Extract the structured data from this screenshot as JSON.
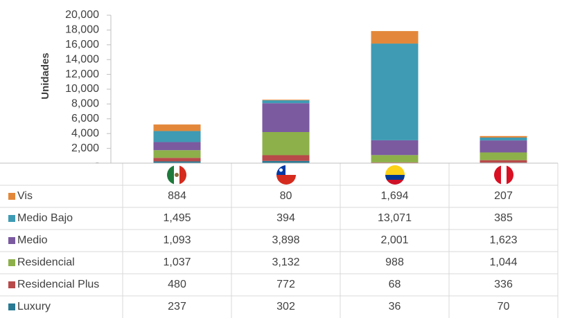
{
  "chart_data": {
    "type": "bar",
    "stacked": true,
    "y_label": "Unidades",
    "categories": [
      null,
      null,
      null,
      null
    ],
    "series": [
      {
        "name": "Vis",
        "color": "#e3883a",
        "values": [
          884,
          80,
          1694,
          207
        ],
        "value_labels": [
          "884",
          "80",
          "1,694",
          "207"
        ]
      },
      {
        "name": "Medio Bajo",
        "color": "#3f9bb4",
        "values": [
          1495,
          394,
          13071,
          385
        ],
        "value_labels": [
          "1,495",
          "394",
          "13,071",
          "385"
        ]
      },
      {
        "name": "Medio",
        "color": "#7b5aa0",
        "values": [
          1093,
          3898,
          2001,
          1623
        ],
        "value_labels": [
          "1,093",
          "3,898",
          "2,001",
          "1,623"
        ]
      },
      {
        "name": "Residencial",
        "color": "#8db04a",
        "values": [
          1037,
          3132,
          988,
          1044
        ],
        "value_labels": [
          "1,037",
          "3,132",
          "988",
          "1,044"
        ]
      },
      {
        "name": "Residencial Plus",
        "color": "#b84a4a",
        "values": [
          480,
          772,
          68,
          336
        ],
        "value_labels": [
          "480",
          "772",
          "68",
          "336"
        ]
      },
      {
        "name": "Luxury",
        "color": "#2a7a94",
        "values": [
          237,
          302,
          36,
          70
        ],
        "value_labels": [
          "237",
          "302",
          "36",
          "70"
        ]
      }
    ],
    "ylim": [
      0,
      20000
    ],
    "yticks": [
      {
        "value": 0,
        "label": "-"
      },
      {
        "value": 2000,
        "label": "2,000"
      },
      {
        "value": 4000,
        "label": "4,000"
      },
      {
        "value": 6000,
        "label": "6,000"
      },
      {
        "value": 8000,
        "label": "8,000"
      },
      {
        "value": 10000,
        "label": "10,000"
      },
      {
        "value": 12000,
        "label": "12,000"
      },
      {
        "value": 14000,
        "label": "14,000"
      },
      {
        "value": 16000,
        "label": "16,000"
      },
      {
        "value": 18000,
        "label": "18,000"
      },
      {
        "value": 20000,
        "label": "20,000"
      }
    ],
    "grid": false
  }
}
